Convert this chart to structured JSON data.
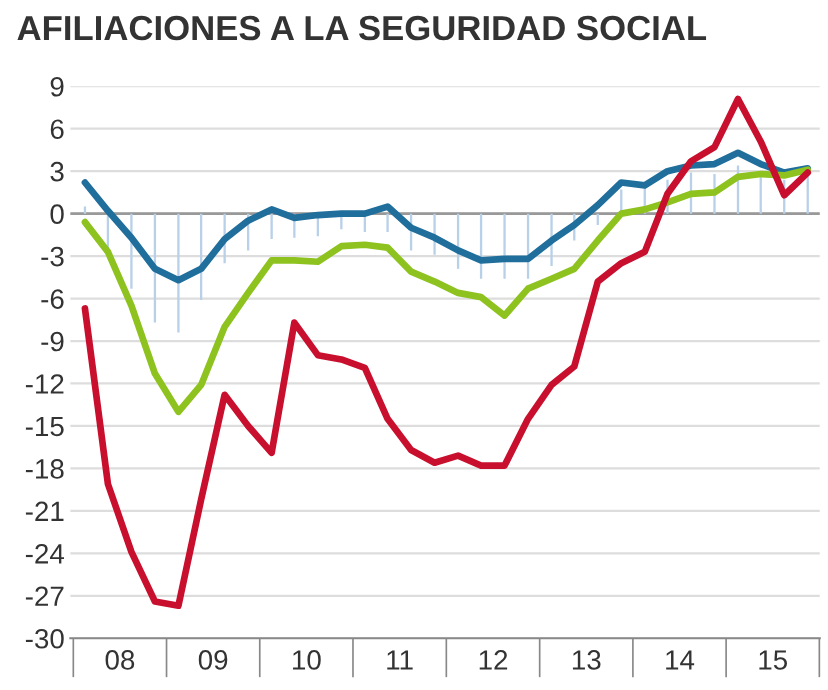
{
  "chart_data": {
    "type": "line",
    "title": "AFILIACIONES A LA SEGURIDAD SOCIAL",
    "x": [
      "2008-02-15",
      "2008-05-15",
      "2008-08-15",
      "2008-11-15",
      "2009-02-15",
      "2009-05-15",
      "2009-08-15",
      "2009-11-15",
      "2010-02-15",
      "2010-05-15",
      "2010-08-15",
      "2010-11-15",
      "2011-02-15",
      "2011-05-15",
      "2011-08-15",
      "2011-11-15",
      "2012-02-15",
      "2012-05-15",
      "2012-08-15",
      "2012-11-15",
      "2013-02-15",
      "2013-05-15",
      "2013-08-15",
      "2013-11-15",
      "2014-02-15",
      "2014-05-15",
      "2014-08-15",
      "2014-11-15",
      "2015-02-15",
      "2015-05-15",
      "2015-08-15",
      "2015-11-15"
    ],
    "series": [
      {
        "type": "bar",
        "color": "#b8d0e8",
        "values": [
          0.5,
          -2.7,
          -5.3,
          -7.7,
          -8.4,
          -6.1,
          -3.5,
          -2.6,
          -1.8,
          -1.7,
          -1.6,
          -1.1,
          -1.3,
          -1.3,
          -2.6,
          -2.9,
          -3.9,
          -4.6,
          -4.6,
          -4.6,
          -3.7,
          -1.9,
          -0.8,
          1.7,
          1.9,
          2.4,
          2.9,
          2.8,
          3.4,
          2.7,
          2.4,
          2.9
        ]
      },
      {
        "color": "#1f6e9c",
        "values": [
          2.2,
          0.2,
          -1.7,
          -3.9,
          -4.7,
          -3.9,
          -1.8,
          -0.5,
          0.3,
          -0.3,
          -0.1,
          0,
          0,
          0.5,
          -1,
          -1.7,
          -2.6,
          -3.3,
          -3.2,
          -3.2,
          -1.9,
          -0.8,
          0.6,
          2.2,
          2,
          3,
          3.4,
          3.5,
          4.3,
          3.5,
          2.9,
          3.2
        ]
      },
      {
        "color": "#8dc21f",
        "values": [
          -0.6,
          -2.7,
          -6.5,
          -11.3,
          -14,
          -12.1,
          -8,
          -5.6,
          -3.3,
          -3.3,
          -3.4,
          -2.3,
          -2.2,
          -2.4,
          -4.1,
          -4.8,
          -5.6,
          -5.9,
          -7.2,
          -5.3,
          -4.6,
          -3.9,
          -1.9,
          0,
          0.3,
          0.8,
          1.4,
          1.5,
          2.6,
          2.8,
          2.7,
          3.1
        ]
      },
      {
        "color": "#c8102e",
        "values": [
          -6.7,
          -19.1,
          -23.9,
          -27.4,
          -27.7,
          -20.2,
          -12.8,
          -15,
          -16.9,
          -7.7,
          -10,
          -10.3,
          -10.9,
          -14.5,
          -16.7,
          -17.6,
          -17.1,
          -17.8,
          -17.8,
          -14.5,
          -12.1,
          -10.8,
          -4.8,
          -3.5,
          -2.7,
          1.4,
          3.7,
          4.7,
          8.1,
          5.1,
          1.3,
          2.9
        ]
      }
    ],
    "xlim": [
      "2007-12-20",
      "2016-01-01"
    ],
    "xticks": [
      {
        "value": "2008-07-01",
        "label": "08"
      },
      {
        "value": "2009-07-01",
        "label": "09"
      },
      {
        "value": "2010-07-01",
        "label": "10"
      },
      {
        "value": "2011-07-01",
        "label": "11"
      },
      {
        "value": "2012-07-01",
        "label": "12"
      },
      {
        "value": "2013-07-01",
        "label": "13"
      },
      {
        "value": "2014-07-01",
        "label": "14"
      },
      {
        "value": "2015-07-01",
        "label": "15"
      }
    ],
    "ylim": [
      -30,
      9
    ],
    "yticks": [
      -30,
      -27,
      -24,
      -21,
      -18,
      -15,
      -12,
      -9,
      -6,
      -3,
      0,
      3,
      6,
      9
    ],
    "grid": "y",
    "ref_lines": [
      {
        "axis": "y",
        "value": 0,
        "label": null,
        "color": "#999999"
      }
    ]
  }
}
